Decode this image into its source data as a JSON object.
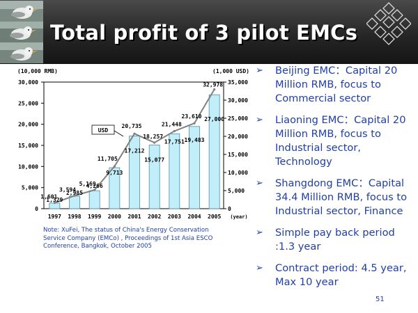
{
  "slide": {
    "title": "Total profit of 3 pilot EMCs",
    "page_number": "51"
  },
  "chart": {
    "unit_left": "(10,000 RMB)",
    "unit_right": "(1,000 USD)",
    "x_unit": "(year)",
    "usd_legend": "USD",
    "note": "Note: XuFei, The status of China's Energy Conservation Service Company (EMCo) , Proceedings of 1st Asia ESCO Conference, Bangkok, October 2005"
  },
  "chart_data": {
    "type": "bar",
    "categories": [
      "1997",
      "1998",
      "1999",
      "2000",
      "2001",
      "2002",
      "2003",
      "2004",
      "2005"
    ],
    "series": [
      {
        "values": [
          1329,
          2985,
          4266,
          9713,
          17212,
          15077,
          17751,
          19483,
          27000
        ]
      },
      {
        "name": "USD",
        "type": "line",
        "values": [
          1601,
          3594,
          5169,
          11705,
          20735,
          18257,
          21448,
          23610,
          32978
        ]
      }
    ],
    "y_left": {
      "ticks": [
        "0",
        "5,000",
        "10,000",
        "15,000",
        "20,000",
        "25,000",
        "30,000"
      ],
      "ylim": [
        0,
        30000
      ]
    },
    "y_right": {
      "ticks": [
        "0",
        "5,000",
        "10,000",
        "15,000",
        "20,000",
        "25,000",
        "30,000",
        "35,000"
      ],
      "ylim": [
        0,
        35000
      ]
    },
    "bar_labels": [
      "1,329",
      "2,985",
      "4,266",
      "9,713",
      "17,212",
      "15,077",
      "17,751",
      "19,483",
      "27,000"
    ],
    "line_labels": [
      "1,601",
      "3,594",
      "5,169",
      "11,705",
      "20,735",
      "18,257",
      "21,448",
      "23,610",
      "32,978"
    ],
    "grid": false,
    "colors": {
      "bar": "#c2eefa",
      "bar_edge": "#4a8fa8",
      "line": "#808080",
      "text": "#000000"
    }
  },
  "bullets": [
    "Beijing EMC：Capital 20 Million RMB, focus to Commercial sector",
    "Liaoning EMC：Capital 20 Million RMB, focus to Industrial sector, Technology",
    "Shangdong EMC：Capital 34.4 Million RMB, focus to Industrial sector, Finance",
    "Simple pay back period :1.3 year",
    "Contract period: 4.5 year, Max 10 year"
  ],
  "bullet_marker": "➢",
  "colors": {
    "text_blue": "#1f3fa6",
    "header_dark": "#262626",
    "title_white": "#ffffff"
  },
  "icons": {
    "header_left": "seagull-photo",
    "header_right": "diamond-pattern-logo"
  }
}
